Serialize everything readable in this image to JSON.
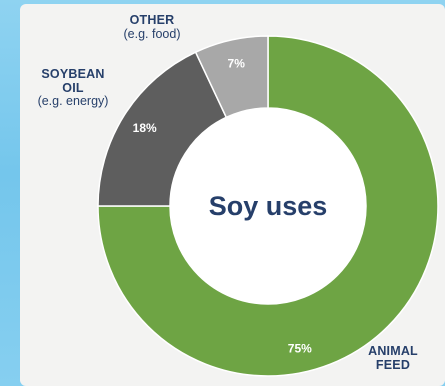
{
  "chart_data": {
    "type": "pie",
    "variant": "donut",
    "title": "Soy uses",
    "slices": [
      {
        "category": "ANIMAL FEED",
        "value": 75,
        "label": "75%",
        "color": "#6ea444"
      },
      {
        "category": "SOYBEAN OIL",
        "note": "(e.g. energy)",
        "value": 18,
        "label": "18%",
        "color": "#5e5e5e"
      },
      {
        "category": "OTHER",
        "note": "(e.g. food)",
        "value": 7,
        "label": "7%",
        "color": "#a8a8a8"
      }
    ]
  },
  "labels": {
    "other_title": "OTHER",
    "other_sub": "(e.g. food)",
    "soybean_title_1": "SOYBEAN",
    "soybean_title_2": "OIL",
    "soybean_sub": "(e.g. energy)",
    "animal_title_1": "ANIMAL",
    "animal_title_2": "FEED"
  },
  "colors": {
    "page_background": "#7ecbee",
    "panel_background": "#f3f3f2",
    "title_text": "#263f6a",
    "label_text": "#263f6a",
    "percent_text": "#ffffff"
  }
}
